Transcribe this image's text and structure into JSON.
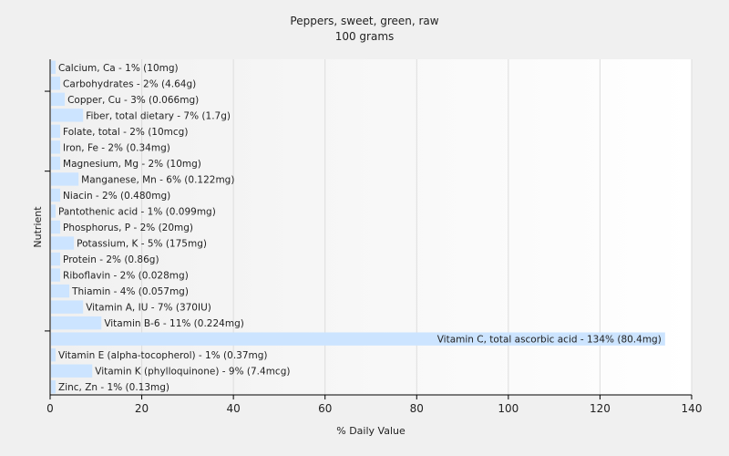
{
  "chart_data": {
    "type": "bar",
    "orientation": "horizontal",
    "title": "Peppers, sweet, green, raw",
    "subtitle": "100 grams",
    "xlabel": "% Daily Value",
    "ylabel": "Nutrient",
    "xlim": [
      0,
      140
    ],
    "xticks": [
      0,
      20,
      40,
      60,
      80,
      100,
      120,
      140
    ],
    "grid": true,
    "bar_color": "#cce4ff",
    "categories": [
      "Calcium, Ca",
      "Carbohydrates",
      "Copper, Cu",
      "Fiber, total dietary",
      "Folate, total",
      "Iron, Fe",
      "Magnesium, Mg",
      "Manganese, Mn",
      "Niacin",
      "Pantothenic acid",
      "Phosphorus, P",
      "Potassium, K",
      "Protein",
      "Riboflavin",
      "Thiamin",
      "Vitamin A, IU",
      "Vitamin B-6",
      "Vitamin C, total ascorbic acid",
      "Vitamin E (alpha-tocopherol)",
      "Vitamin K (phylloquinone)",
      "Zinc, Zn"
    ],
    "values": [
      1,
      2,
      3,
      7,
      2,
      2,
      2,
      6,
      2,
      1,
      2,
      5,
      2,
      2,
      4,
      7,
      11,
      134,
      1,
      9,
      1
    ],
    "labels": [
      "Calcium, Ca - 1% (10mg)",
      "Carbohydrates - 2% (4.64g)",
      "Copper, Cu - 3% (0.066mg)",
      "Fiber, total dietary - 7% (1.7g)",
      "Folate, total - 2% (10mcg)",
      "Iron, Fe - 2% (0.34mg)",
      "Magnesium, Mg - 2% (10mg)",
      "Manganese, Mn - 6% (0.122mg)",
      "Niacin - 2% (0.480mg)",
      "Pantothenic acid - 1% (0.099mg)",
      "Phosphorus, P - 2% (20mg)",
      "Potassium, K - 5% (175mg)",
      "Protein - 2% (0.86g)",
      "Riboflavin - 2% (0.028mg)",
      "Thiamin - 4% (0.057mg)",
      "Vitamin A, IU - 7% (370IU)",
      "Vitamin B-6 - 11% (0.224mg)",
      "Vitamin C, total ascorbic acid - 134% (80.4mg)",
      "Vitamin E (alpha-tocopherol) - 1% (0.37mg)",
      "Vitamin K (phylloquinone) - 9% (7.4mcg)",
      "Zinc, Zn - 1% (0.13mg)"
    ]
  }
}
